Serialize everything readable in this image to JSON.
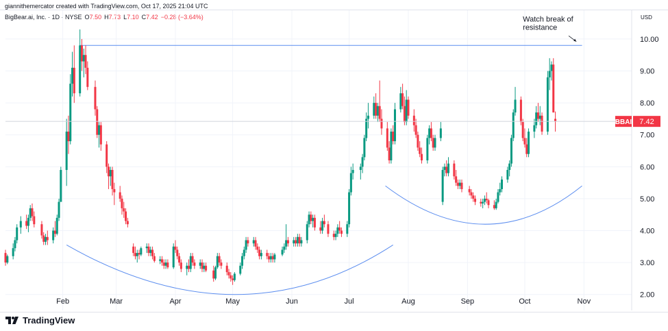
{
  "credit": "giannithemercator created with TradingView.com, Oct 17, 2025 21:04 UTC",
  "legend": {
    "symbol": "BigBear.ai, Inc. · 1D · NYSE",
    "o_label": "O",
    "o": "7.50",
    "h_label": "H",
    "h": "7.73",
    "l_label": "L",
    "l": "7.10",
    "c_label": "C",
    "c": "7.42",
    "change": "−0.28 (−3.64%)"
  },
  "footer": {
    "brand": "TradingView",
    "logo_icon": "tradingview-logo-icon"
  },
  "colors": {
    "up": "#089981",
    "down": "#f23645",
    "line": "#5b8def",
    "label": "#f23645"
  },
  "chart_data": {
    "type": "candlestick",
    "currency": "USD",
    "ylim": [
      1.5,
      10.9
    ],
    "y_ticks": [
      "2.00",
      "3.00",
      "4.00",
      "5.00",
      "6.00",
      "7.00",
      "8.00",
      "9.00",
      "10.00"
    ],
    "x_ticks": [
      "Feb",
      "Mar",
      "Apr",
      "May",
      "Jun",
      "Jul",
      "Aug",
      "Sep",
      "Oct",
      "Nov"
    ],
    "x_range": [
      "2025-01-02",
      "2025-11-26"
    ],
    "last_price": {
      "ticker": "BBAI",
      "value": 7.42
    },
    "annotation": "Watch break of\nresistance",
    "resistance_level": 9.8,
    "candles": [
      [
        "2025-01-02",
        3.3,
        3.4,
        2.9,
        3.0
      ],
      [
        "2025-01-03",
        3.0,
        3.25,
        2.95,
        3.2
      ],
      [
        "2025-01-06",
        3.2,
        3.6,
        3.1,
        3.45
      ],
      [
        "2025-01-07",
        3.45,
        3.8,
        3.35,
        3.7
      ],
      [
        "2025-01-08",
        3.7,
        4.2,
        3.6,
        4.1
      ],
      [
        "2025-01-10",
        4.1,
        4.45,
        3.9,
        4.3
      ],
      [
        "2025-01-13",
        4.3,
        4.5,
        4.05,
        4.15
      ],
      [
        "2025-01-14",
        4.15,
        4.5,
        3.95,
        4.4
      ],
      [
        "2025-01-15",
        4.4,
        4.8,
        4.3,
        4.7
      ],
      [
        "2025-01-16",
        4.7,
        4.85,
        4.3,
        4.45
      ],
      [
        "2025-01-17",
        4.45,
        4.6,
        4.1,
        4.2
      ],
      [
        "2025-01-21",
        4.2,
        4.3,
        3.75,
        3.85
      ],
      [
        "2025-01-22",
        3.85,
        3.95,
        3.55,
        3.65
      ],
      [
        "2025-01-23",
        3.65,
        3.9,
        3.55,
        3.8
      ],
      [
        "2025-01-24",
        3.8,
        4.0,
        3.55,
        3.7
      ],
      [
        "2025-01-27",
        3.7,
        4.1,
        3.6,
        4.0
      ],
      [
        "2025-01-28",
        4.0,
        4.3,
        3.8,
        3.9
      ],
      [
        "2025-01-29",
        3.9,
        4.5,
        3.85,
        4.4
      ],
      [
        "2025-01-30",
        4.4,
        5.0,
        4.3,
        4.9
      ],
      [
        "2025-01-31",
        4.9,
        6.0,
        4.9,
        5.9
      ],
      [
        "2025-02-03",
        5.9,
        7.5,
        5.4,
        7.1
      ],
      [
        "2025-02-04",
        7.1,
        7.6,
        6.4,
        6.8
      ],
      [
        "2025-02-05",
        6.8,
        8.9,
        6.7,
        8.6
      ],
      [
        "2025-02-06",
        8.6,
        9.6,
        8.2,
        9.1
      ],
      [
        "2025-02-07",
        9.1,
        9.8,
        8.0,
        8.3
      ],
      [
        "2025-02-10",
        8.3,
        10.3,
        8.2,
        9.8
      ],
      [
        "2025-02-11",
        9.8,
        10.0,
        9.0,
        9.3
      ],
      [
        "2025-02-12",
        9.3,
        9.7,
        8.8,
        9.5
      ],
      [
        "2025-02-13",
        9.5,
        9.8,
        8.9,
        9.1
      ],
      [
        "2025-02-14",
        9.1,
        9.3,
        8.4,
        8.5
      ],
      [
        "2025-02-18",
        8.5,
        8.7,
        7.6,
        7.8
      ],
      [
        "2025-02-19",
        7.8,
        7.9,
        6.9,
        7.0
      ],
      [
        "2025-02-20",
        7.0,
        7.4,
        6.6,
        7.3
      ],
      [
        "2025-02-21",
        7.3,
        7.4,
        6.5,
        6.7
      ],
      [
        "2025-02-24",
        6.7,
        6.8,
        5.8,
        6.0
      ],
      [
        "2025-02-25",
        6.0,
        6.1,
        5.3,
        5.7
      ],
      [
        "2025-02-26",
        5.7,
        6.0,
        5.4,
        5.9
      ],
      [
        "2025-02-27",
        5.9,
        6.0,
        5.1,
        5.3
      ],
      [
        "2025-02-28",
        5.3,
        5.5,
        4.8,
        5.2
      ],
      [
        "2025-03-03",
        5.2,
        5.4,
        4.9,
        5.0
      ],
      [
        "2025-03-04",
        5.0,
        5.1,
        4.5,
        4.7
      ],
      [
        "2025-03-05",
        4.7,
        4.9,
        4.4,
        4.6
      ],
      [
        "2025-03-06",
        4.6,
        4.7,
        4.2,
        4.3
      ],
      [
        "2025-03-07",
        4.3,
        4.4,
        4.1,
        4.2
      ],
      [
        "2025-03-10",
        3.5,
        3.6,
        3.2,
        3.3
      ],
      [
        "2025-03-11",
        3.3,
        3.5,
        3.1,
        3.2
      ],
      [
        "2025-03-12",
        3.2,
        3.4,
        3.0,
        3.3
      ],
      [
        "2025-03-13",
        3.3,
        3.4,
        3.1,
        3.25
      ],
      [
        "2025-03-14",
        3.25,
        3.5,
        3.2,
        3.45
      ],
      [
        "2025-03-17",
        3.45,
        3.6,
        3.3,
        3.5
      ],
      [
        "2025-03-18",
        3.5,
        3.6,
        3.2,
        3.3
      ],
      [
        "2025-03-19",
        3.3,
        3.5,
        3.2,
        3.4
      ],
      [
        "2025-03-20",
        3.4,
        3.5,
        3.1,
        3.2
      ],
      [
        "2025-03-21",
        3.2,
        3.3,
        3.0,
        3.05
      ],
      [
        "2025-03-24",
        3.05,
        3.2,
        2.95,
        3.1
      ],
      [
        "2025-03-25",
        3.1,
        3.2,
        2.9,
        3.0
      ],
      [
        "2025-03-26",
        3.0,
        3.1,
        2.8,
        2.9
      ],
      [
        "2025-03-27",
        2.9,
        3.1,
        2.8,
        3.0
      ],
      [
        "2025-03-28",
        3.0,
        3.1,
        2.8,
        2.85
      ],
      [
        "2025-03-31",
        2.85,
        3.6,
        2.8,
        3.5
      ],
      [
        "2025-04-01",
        3.5,
        3.7,
        3.3,
        3.4
      ],
      [
        "2025-04-02",
        3.4,
        3.5,
        3.1,
        3.2
      ],
      [
        "2025-04-03",
        3.2,
        3.3,
        2.9,
        3.0
      ],
      [
        "2025-04-04",
        3.0,
        3.1,
        2.7,
        2.8
      ],
      [
        "2025-04-07",
        2.8,
        3.0,
        2.6,
        2.9
      ],
      [
        "2025-04-08",
        2.9,
        3.1,
        2.7,
        2.8
      ],
      [
        "2025-04-09",
        2.8,
        3.3,
        2.7,
        3.2
      ],
      [
        "2025-04-10",
        3.2,
        3.3,
        2.9,
        3.0
      ],
      [
        "2025-04-11",
        3.0,
        3.1,
        2.8,
        2.9
      ],
      [
        "2025-04-14",
        2.9,
        3.1,
        2.8,
        3.0
      ],
      [
        "2025-04-15",
        3.0,
        3.1,
        2.7,
        2.8
      ],
      [
        "2025-04-16",
        2.8,
        3.0,
        2.7,
        2.9
      ],
      [
        "2025-04-17",
        2.9,
        3.0,
        2.7,
        2.75
      ],
      [
        "2025-04-21",
        2.75,
        2.9,
        2.4,
        2.5
      ],
      [
        "2025-04-22",
        2.5,
        2.9,
        2.45,
        2.85
      ],
      [
        "2025-04-23",
        2.85,
        3.3,
        2.8,
        3.2
      ],
      [
        "2025-04-24",
        3.2,
        3.3,
        2.9,
        3.0
      ],
      [
        "2025-04-25",
        3.0,
        3.1,
        2.8,
        2.9
      ],
      [
        "2025-04-28",
        2.9,
        3.0,
        2.6,
        2.7
      ],
      [
        "2025-04-29",
        2.7,
        2.8,
        2.5,
        2.6
      ],
      [
        "2025-04-30",
        2.6,
        2.7,
        2.4,
        2.5
      ],
      [
        "2025-05-01",
        2.5,
        2.6,
        2.3,
        2.45
      ],
      [
        "2025-05-02",
        2.45,
        2.7,
        2.4,
        2.65
      ],
      [
        "2025-05-05",
        2.65,
        3.0,
        2.6,
        2.9
      ],
      [
        "2025-05-06",
        2.9,
        3.3,
        2.8,
        3.2
      ],
      [
        "2025-05-07",
        3.2,
        3.5,
        3.1,
        3.4
      ],
      [
        "2025-05-08",
        3.4,
        3.8,
        3.3,
        3.7
      ],
      [
        "2025-05-09",
        3.7,
        3.8,
        3.5,
        3.6
      ],
      [
        "2025-05-12",
        3.6,
        3.8,
        3.5,
        3.7
      ],
      [
        "2025-05-13",
        3.7,
        3.8,
        3.4,
        3.5
      ],
      [
        "2025-05-14",
        3.5,
        3.6,
        3.3,
        3.4
      ],
      [
        "2025-05-15",
        3.4,
        3.5,
        3.1,
        3.2
      ],
      [
        "2025-05-16",
        3.2,
        3.4,
        3.1,
        3.3
      ],
      [
        "2025-05-19",
        3.3,
        3.4,
        3.1,
        3.2
      ],
      [
        "2025-05-20",
        3.2,
        3.3,
        3.0,
        3.1
      ],
      [
        "2025-05-21",
        3.1,
        3.3,
        3.0,
        3.2
      ],
      [
        "2025-05-22",
        3.2,
        3.3,
        3.0,
        3.1
      ],
      [
        "2025-05-23",
        3.1,
        3.3,
        3.0,
        3.25
      ],
      [
        "2025-05-27",
        3.25,
        3.5,
        3.2,
        3.4
      ],
      [
        "2025-05-28",
        3.4,
        3.6,
        3.3,
        3.5
      ],
      [
        "2025-05-29",
        3.5,
        4.2,
        3.4,
        3.7
      ],
      [
        "2025-05-30",
        3.7,
        3.8,
        3.5,
        3.6
      ],
      [
        "2025-06-02",
        3.6,
        3.8,
        3.5,
        3.7
      ],
      [
        "2025-06-03",
        3.7,
        3.8,
        3.5,
        3.6
      ],
      [
        "2025-06-04",
        3.6,
        3.9,
        3.5,
        3.8
      ],
      [
        "2025-06-05",
        3.8,
        3.9,
        3.5,
        3.6
      ],
      [
        "2025-06-06",
        3.6,
        3.8,
        3.5,
        3.7
      ],
      [
        "2025-06-09",
        3.7,
        4.3,
        3.6,
        4.2
      ],
      [
        "2025-06-10",
        4.2,
        4.6,
        4.1,
        4.5
      ],
      [
        "2025-06-11",
        4.5,
        4.6,
        4.2,
        4.3
      ],
      [
        "2025-06-12",
        4.3,
        4.5,
        4.1,
        4.4
      ],
      [
        "2025-06-13",
        4.4,
        4.5,
        4.0,
        4.1
      ],
      [
        "2025-06-16",
        4.1,
        4.3,
        3.9,
        4.0
      ],
      [
        "2025-06-17",
        4.0,
        4.4,
        3.9,
        4.3
      ],
      [
        "2025-06-18",
        4.3,
        4.5,
        4.1,
        4.2
      ],
      [
        "2025-06-20",
        4.2,
        4.3,
        3.8,
        3.9
      ],
      [
        "2025-06-23",
        3.9,
        4.0,
        3.7,
        3.8
      ],
      [
        "2025-06-24",
        3.8,
        4.0,
        3.7,
        3.9
      ],
      [
        "2025-06-25",
        3.9,
        4.2,
        3.8,
        4.1
      ],
      [
        "2025-06-26",
        4.1,
        4.3,
        3.9,
        4.0
      ],
      [
        "2025-06-27",
        4.0,
        4.1,
        3.8,
        3.9
      ],
      [
        "2025-06-30",
        3.9,
        4.3,
        3.8,
        4.2
      ],
      [
        "2025-07-01",
        4.2,
        5.3,
        4.1,
        5.2
      ],
      [
        "2025-07-02",
        5.2,
        6.0,
        5.1,
        5.8
      ],
      [
        "2025-07-03",
        5.8,
        6.1,
        5.6,
        5.9
      ],
      [
        "2025-07-07",
        5.9,
        6.1,
        5.6,
        6.0
      ],
      [
        "2025-07-08",
        6.0,
        6.4,
        5.8,
        6.3
      ],
      [
        "2025-07-09",
        6.3,
        7.0,
        6.2,
        6.9
      ],
      [
        "2025-07-10",
        6.9,
        7.7,
        6.8,
        7.5
      ],
      [
        "2025-07-11",
        7.5,
        8.0,
        7.2,
        7.6
      ],
      [
        "2025-07-14",
        7.6,
        8.2,
        7.5,
        8.0
      ],
      [
        "2025-07-15",
        8.0,
        8.3,
        7.5,
        7.6
      ],
      [
        "2025-07-16",
        7.6,
        8.0,
        7.4,
        7.9
      ],
      [
        "2025-07-17",
        7.9,
        8.7,
        7.4,
        7.5
      ],
      [
        "2025-07-18",
        7.5,
        7.8,
        7.0,
        7.2
      ],
      [
        "2025-07-21",
        7.2,
        7.4,
        6.5,
        6.6
      ],
      [
        "2025-07-22",
        6.6,
        6.8,
        6.1,
        6.2
      ],
      [
        "2025-07-23",
        6.2,
        7.2,
        6.1,
        7.1
      ],
      [
        "2025-07-24",
        7.1,
        7.3,
        6.7,
        6.8
      ],
      [
        "2025-07-25",
        6.8,
        8.0,
        6.7,
        7.8
      ],
      [
        "2025-07-28",
        7.8,
        8.5,
        7.7,
        8.3
      ],
      [
        "2025-07-29",
        8.3,
        8.6,
        7.8,
        7.9
      ],
      [
        "2025-07-30",
        7.9,
        8.2,
        7.3,
        7.4
      ],
      [
        "2025-07-31",
        7.4,
        8.4,
        7.3,
        8.1
      ],
      [
        "2025-08-01",
        8.1,
        8.2,
        7.5,
        7.6
      ],
      [
        "2025-08-04",
        7.6,
        7.8,
        7.1,
        7.3
      ],
      [
        "2025-08-05",
        7.3,
        7.5,
        6.9,
        7.0
      ],
      [
        "2025-08-06",
        7.0,
        7.1,
        6.5,
        6.6
      ],
      [
        "2025-08-07",
        6.6,
        6.8,
        6.3,
        6.4
      ],
      [
        "2025-08-08",
        6.4,
        6.6,
        6.1,
        6.2
      ],
      [
        "2025-08-11",
        6.2,
        7.0,
        6.1,
        6.9
      ],
      [
        "2025-08-12",
        6.9,
        7.3,
        6.7,
        7.2
      ],
      [
        "2025-08-13",
        7.2,
        7.4,
        6.8,
        6.9
      ],
      [
        "2025-08-14",
        6.9,
        7.0,
        6.5,
        6.6
      ],
      [
        "2025-08-15",
        6.6,
        7.0,
        6.5,
        6.9
      ],
      [
        "2025-08-18",
        6.9,
        7.4,
        6.8,
        7.2
      ],
      [
        "2025-08-19",
        4.9,
        6.0,
        4.8,
        5.9
      ],
      [
        "2025-08-20",
        5.9,
        6.1,
        5.7,
        6.0
      ],
      [
        "2025-08-21",
        6.0,
        6.2,
        5.7,
        5.8
      ],
      [
        "2025-08-22",
        5.8,
        6.3,
        5.7,
        6.1
      ],
      [
        "2025-08-25",
        6.1,
        6.2,
        5.6,
        5.7
      ],
      [
        "2025-08-26",
        5.7,
        5.9,
        5.4,
        5.5
      ],
      [
        "2025-08-27",
        5.5,
        5.6,
        5.3,
        5.4
      ],
      [
        "2025-08-28",
        5.4,
        5.6,
        5.3,
        5.5
      ],
      [
        "2025-08-29",
        5.5,
        5.6,
        5.2,
        5.3
      ],
      [
        "2025-09-02",
        5.3,
        5.4,
        5.1,
        5.2
      ],
      [
        "2025-09-03",
        5.2,
        5.3,
        5.0,
        5.1
      ],
      [
        "2025-09-04",
        5.1,
        5.2,
        4.9,
        5.0
      ],
      [
        "2025-09-05",
        5.0,
        5.1,
        4.8,
        4.9
      ],
      [
        "2025-09-08",
        4.9,
        5.0,
        4.75,
        4.85
      ],
      [
        "2025-09-09",
        4.85,
        5.0,
        4.7,
        4.9
      ],
      [
        "2025-09-10",
        4.9,
        5.1,
        4.8,
        5.0
      ],
      [
        "2025-09-11",
        5.0,
        5.2,
        4.85,
        4.95
      ],
      [
        "2025-09-12",
        4.95,
        5.0,
        4.7,
        4.8
      ],
      [
        "2025-09-15",
        4.8,
        4.95,
        4.65,
        4.7
      ],
      [
        "2025-09-16",
        4.7,
        5.0,
        4.65,
        4.9
      ],
      [
        "2025-09-17",
        4.9,
        5.3,
        4.85,
        5.2
      ],
      [
        "2025-09-18",
        5.2,
        5.5,
        5.1,
        5.3
      ],
      [
        "2025-09-19",
        5.3,
        5.7,
        5.2,
        5.6
      ],
      [
        "2025-09-22",
        5.6,
        6.0,
        5.5,
        5.9
      ],
      [
        "2025-09-23",
        5.9,
        6.2,
        5.7,
        6.1
      ],
      [
        "2025-09-24",
        6.1,
        7.0,
        6.0,
        6.9
      ],
      [
        "2025-09-25",
        6.9,
        7.8,
        6.8,
        7.7
      ],
      [
        "2025-09-26",
        7.7,
        8.5,
        7.6,
        8.1
      ],
      [
        "2025-09-29",
        8.1,
        8.2,
        7.3,
        7.4
      ],
      [
        "2025-09-30",
        7.4,
        7.5,
        6.8,
        6.9
      ],
      [
        "2025-10-01",
        6.9,
        7.2,
        6.6,
        6.7
      ],
      [
        "2025-10-02",
        6.7,
        6.9,
        6.3,
        6.4
      ],
      [
        "2025-10-03",
        6.4,
        7.2,
        6.3,
        7.1
      ],
      [
        "2025-10-06",
        7.1,
        7.5,
        6.9,
        7.3
      ],
      [
        "2025-10-07",
        7.3,
        7.9,
        7.2,
        7.7
      ],
      [
        "2025-10-08",
        7.7,
        8.0,
        7.4,
        7.5
      ],
      [
        "2025-10-09",
        7.5,
        7.9,
        7.3,
        7.6
      ],
      [
        "2025-10-10",
        7.6,
        7.7,
        7.0,
        7.1
      ],
      [
        "2025-10-13",
        7.1,
        9.0,
        7.0,
        8.8
      ],
      [
        "2025-10-14",
        8.8,
        9.4,
        8.4,
        9.0
      ],
      [
        "2025-10-15",
        9.0,
        9.3,
        8.7,
        9.2
      ],
      [
        "2025-10-16",
        9.2,
        9.4,
        7.7,
        7.7
      ],
      [
        "2025-10-17",
        7.5,
        7.73,
        7.1,
        7.42
      ]
    ]
  }
}
